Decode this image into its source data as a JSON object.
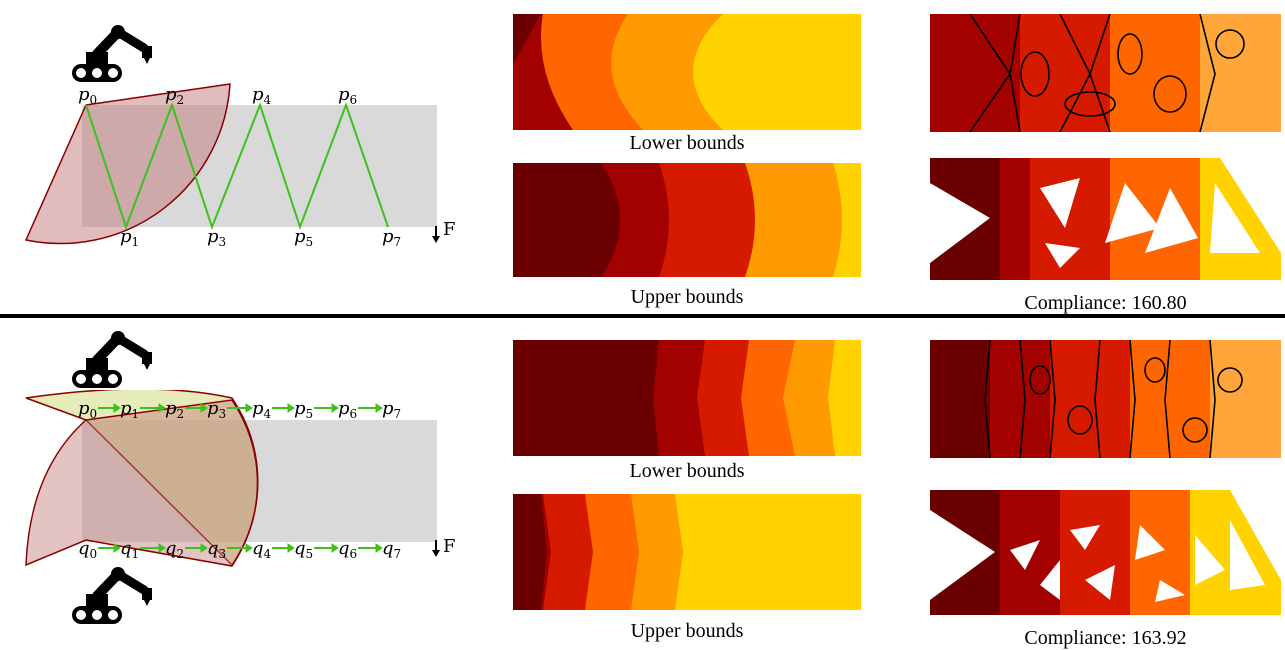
{
  "top": {
    "path_labels": [
      "p",
      "p",
      "p",
      "p",
      "p",
      "p",
      "p",
      "p"
    ],
    "path_subscripts": [
      "0",
      "1",
      "2",
      "3",
      "4",
      "5",
      "6",
      "7"
    ],
    "force_label": "F",
    "maps": {
      "lower_caption": "Lower bounds",
      "upper_caption": "Upper bounds"
    },
    "design_caption": "Compliance: 160.80"
  },
  "bottom": {
    "top_labels": [
      "p",
      "p",
      "p",
      "p",
      "p",
      "p",
      "p",
      "p"
    ],
    "top_subscripts": [
      "0",
      "1",
      "2",
      "3",
      "4",
      "5",
      "6",
      "7"
    ],
    "bottom_labels": [
      "q",
      "q",
      "q",
      "q",
      "q",
      "q",
      "q",
      "q"
    ],
    "bottom_subscripts": [
      "0",
      "1",
      "2",
      "3",
      "4",
      "5",
      "6",
      "7"
    ],
    "force_label": "F",
    "maps": {
      "lower_caption": "Lower bounds",
      "upper_caption": "Upper bounds"
    },
    "design_caption": "Compliance: 163.92"
  },
  "colors": {
    "domain_gray": "#d9d9d9",
    "path_green": "#3cc21a",
    "reach_red": "#c47a7a",
    "reach_green": "#d3e08a",
    "heat": [
      "#6b0000",
      "#a30000",
      "#d61a00",
      "#ff6600",
      "#ff9a00",
      "#ffd200"
    ]
  }
}
